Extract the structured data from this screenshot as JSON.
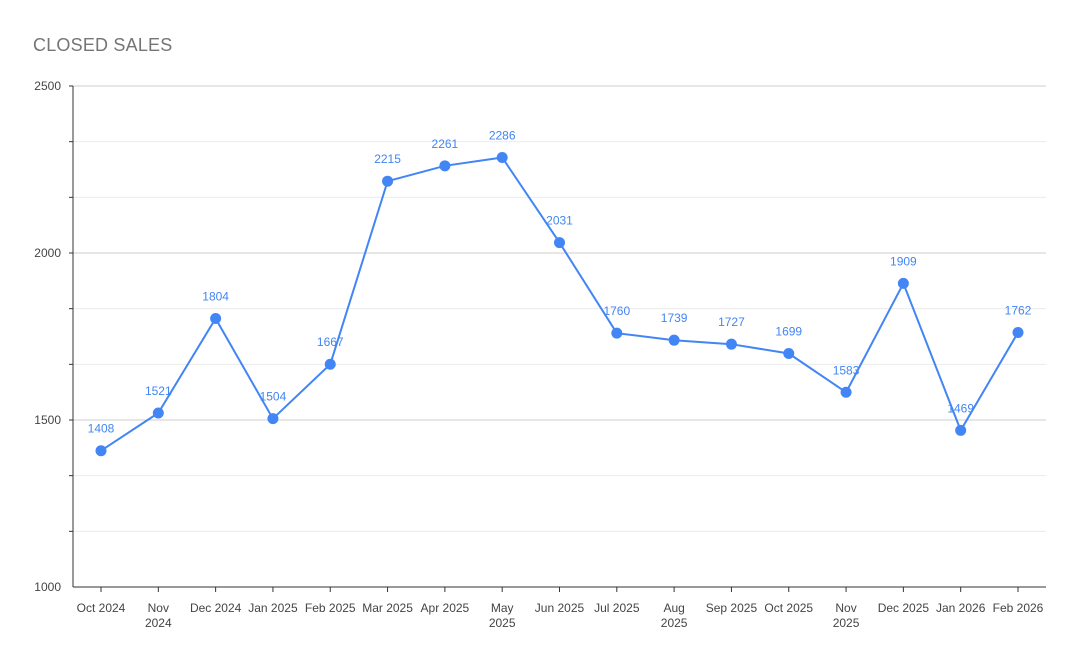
{
  "chart_data": {
    "type": "line",
    "title": "CLOSED SALES",
    "xlabel": "",
    "ylabel": "",
    "ylim": [
      1000,
      2500
    ],
    "yticks": [
      "1000",
      "1500",
      "2000",
      "2500"
    ],
    "grid": true,
    "legend": "none",
    "categories": [
      [
        "Oct 2024"
      ],
      [
        "Nov",
        "2024"
      ],
      [
        "Dec 2024"
      ],
      [
        "Jan 2025"
      ],
      [
        "Feb 2025"
      ],
      [
        "Mar 2025"
      ],
      [
        "Apr 2025"
      ],
      [
        "May",
        "2025"
      ],
      [
        "Jun 2025"
      ],
      [
        "Jul 2025"
      ],
      [
        "Aug",
        "2025"
      ],
      [
        "Sep 2025"
      ],
      [
        "Oct 2025"
      ],
      [
        "Nov",
        "2025"
      ],
      [
        "Dec 2025"
      ],
      [
        "Jan 2026"
      ],
      [
        "Feb 2026"
      ]
    ],
    "series": [
      {
        "values": [
          1408,
          1521,
          1804,
          1504,
          1667,
          2215,
          2261,
          2286,
          2031,
          1760,
          1739,
          1727,
          1699,
          1583,
          1909,
          1469,
          1762
        ],
        "color": "#4285f4"
      }
    ]
  }
}
